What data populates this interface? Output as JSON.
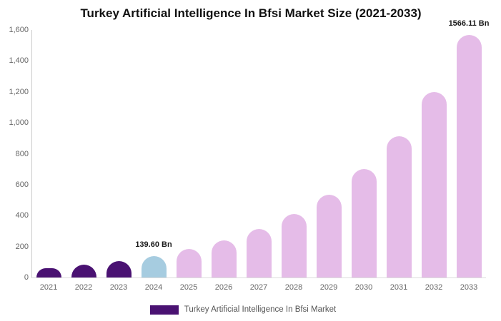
{
  "chart_data": {
    "type": "bar",
    "title": "Turkey Artificial Intelligence In Bfsi Market Size (2021-2033)",
    "unit": "Bn",
    "categories": [
      "2021",
      "2022",
      "2023",
      "2024",
      "2025",
      "2026",
      "2027",
      "2028",
      "2029",
      "2030",
      "2031",
      "2032",
      "2033"
    ],
    "series": [
      {
        "name": "Turkey Artificial Intelligence In Bfsi Market",
        "values": [
          62.4,
          81.6,
          106.7,
          139.6,
          182.6,
          238.9,
          312.5,
          408.8,
          534.8,
          699.6,
          915.2,
          1197.3,
          1566.11
        ]
      }
    ],
    "ylim": [
      0,
      1600
    ],
    "ytick_step": 200,
    "ytick_labels": [
      "0",
      "200",
      "400",
      "600",
      "800",
      "1,000",
      "1,200",
      "1,400",
      "1,600"
    ],
    "grid": false,
    "legend_position": "bottom",
    "bar_colors": [
      "#4A1272",
      "#4A1272",
      "#4A1272",
      "#A6CCE0",
      "#E5BCE8",
      "#E5BCE8",
      "#E5BCE8",
      "#E5BCE8",
      "#E5BCE8",
      "#E5BCE8",
      "#E5BCE8",
      "#E5BCE8",
      "#E5BCE8"
    ],
    "data_labels": [
      {
        "index": 3,
        "text": "139.60 Bn"
      },
      {
        "index": 12,
        "text": "1566.11 Bn"
      }
    ]
  },
  "colors": {
    "historical": "#4A1272",
    "base_year": "#A6CCE0",
    "forecast": "#E5BCE8",
    "axis_line": "#cccccc",
    "tick_text": "#666666"
  },
  "legend": {
    "label": "Turkey Artificial Intelligence In Bfsi Market",
    "swatch_color": "#4A1272"
  }
}
